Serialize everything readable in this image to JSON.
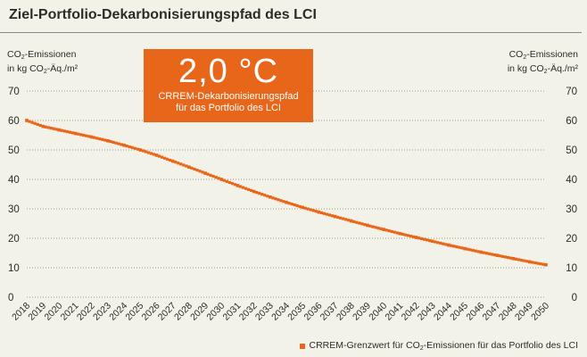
{
  "title": "Ziel-Portfolio-Dekarbonisierungspfad des LCI",
  "axis_label_line1_prefix": "CO",
  "axis_label_line1_sub": "2",
  "axis_label_line1_suffix": "-Emissionen",
  "axis_label_line2_prefix": "in kg CO",
  "axis_label_line2_sub": "2",
  "axis_label_line2_suffix": "-Äq./m²",
  "badge": {
    "value": "2,0 °C",
    "line1": "CRREM-Dekarbonisierungspfad",
    "line2": "für das Portfolio des LCI"
  },
  "legend": {
    "prefix": "CRREM-Grenzwert für CO",
    "sub": "2",
    "suffix": "-Emissionen für das Portfolio des LCI"
  },
  "colors": {
    "series": "#e8661a",
    "grid": "#9a9a90",
    "background": "#f3f2e8"
  },
  "chart_data": {
    "type": "line",
    "x": [
      "2018",
      "2019",
      "2020",
      "2021",
      "2022",
      "2023",
      "2024",
      "2025",
      "2026",
      "2027",
      "2028",
      "2029",
      "2030",
      "2031",
      "2032",
      "2033",
      "2034",
      "2035",
      "2036",
      "2037",
      "2038",
      "2039",
      "2040",
      "2041",
      "2042",
      "2043",
      "2044",
      "2045",
      "2046",
      "2047",
      "2048",
      "2049",
      "2050"
    ],
    "series": [
      {
        "values": [
          60,
          58,
          56.8,
          55.6,
          54.4,
          53.1,
          51.6,
          50,
          48.2,
          46.2,
          44.2,
          42.1,
          40,
          37.9,
          35.9,
          34,
          32.2,
          30.5,
          28.9,
          27.4,
          25.9,
          24.4,
          23,
          21.6,
          20.3,
          19,
          17.7,
          16.5,
          15.3,
          14.2,
          13.1,
          12,
          11
        ]
      }
    ],
    "yticks": [
      0,
      10,
      20,
      30,
      40,
      50,
      60,
      70
    ],
    "ylim": [
      0,
      70
    ],
    "grid": "horizontal-dotted",
    "legend_position": "bottom-right"
  }
}
